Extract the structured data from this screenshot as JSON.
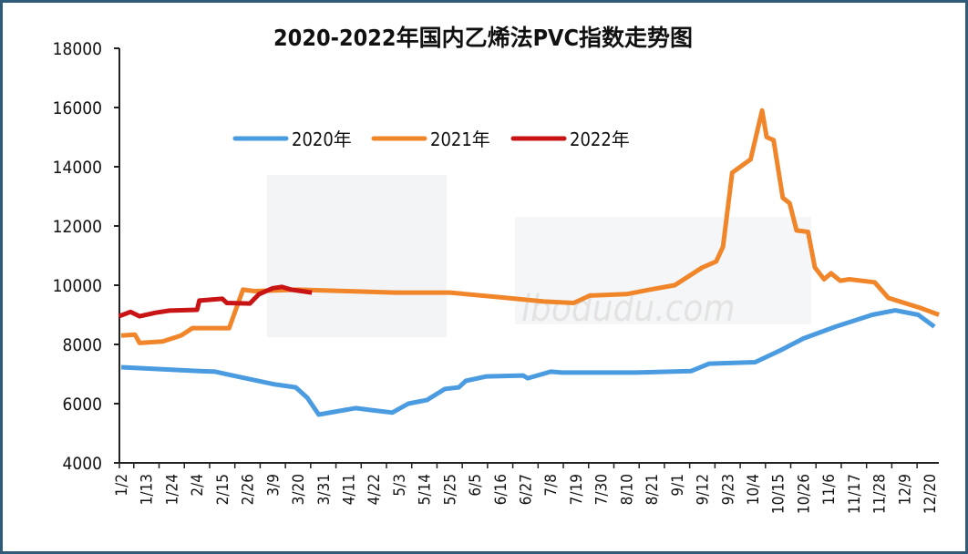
{
  "chart_data": {
    "type": "line",
    "title": "2020-2022年国内乙烯法PVC指数走势图",
    "xlabel": "",
    "ylabel": "",
    "ylim": [
      4000,
      18000
    ],
    "yticks": [
      "4000",
      "6000",
      "8000",
      "10000",
      "12000",
      "14000",
      "16000",
      "18000"
    ],
    "xticks": [
      "1/2",
      "1/13",
      "1/24",
      "2/4",
      "2/15",
      "2/26",
      "3/9",
      "3/20",
      "3/31",
      "4/11",
      "4/22",
      "5/3",
      "5/14",
      "5/25",
      "6/5",
      "6/16",
      "6/27",
      "7/8",
      "7/19",
      "7/30",
      "8/10",
      "8/21",
      "9/1",
      "9/12",
      "9/23",
      "10/4",
      "10/15",
      "10/26",
      "11/6",
      "11/17",
      "11/28",
      "12/9",
      "12/20"
    ],
    "grid": false,
    "legend": "top-left",
    "series": [
      {
        "name": "2020年",
        "color": "#4a9be0",
        "points": [
          [
            "1/2",
            7230
          ],
          [
            "2/5",
            7100
          ],
          [
            "2/12",
            7080
          ],
          [
            "2/25",
            6860
          ],
          [
            "3/10",
            6650
          ],
          [
            "3/19",
            6550
          ],
          [
            "3/24",
            6200
          ],
          [
            "3/29",
            5630
          ],
          [
            "4/14",
            5850
          ],
          [
            "4/21",
            5780
          ],
          [
            "4/30",
            5700
          ],
          [
            "5/7",
            6000
          ],
          [
            "5/15",
            6120
          ],
          [
            "5/23",
            6500
          ],
          [
            "5/29",
            6550
          ],
          [
            "6/1",
            6770
          ],
          [
            "6/10",
            6920
          ],
          [
            "6/26",
            6950
          ],
          [
            "6/28",
            6860
          ],
          [
            "7/8",
            7080
          ],
          [
            "7/13",
            7050
          ],
          [
            "8/14",
            7050
          ],
          [
            "9/7",
            7100
          ],
          [
            "9/15",
            7350
          ],
          [
            "10/5",
            7400
          ],
          [
            "10/16",
            7800
          ],
          [
            "10/26",
            8200
          ],
          [
            "11/9",
            8600
          ],
          [
            "11/25",
            9000
          ],
          [
            "12/5",
            9150
          ],
          [
            "12/15",
            9000
          ],
          [
            "12/22",
            8600
          ]
        ]
      },
      {
        "name": "2021年",
        "color": "#f0852a",
        "points": [
          [
            "1/2",
            8300
          ],
          [
            "1/8",
            8330
          ],
          [
            "1/10",
            8050
          ],
          [
            "1/20",
            8100
          ],
          [
            "1/28",
            8300
          ],
          [
            "2/2",
            8550
          ],
          [
            "2/18",
            8550
          ],
          [
            "2/24",
            9850
          ],
          [
            "3/1",
            9800
          ],
          [
            "3/20",
            9850
          ],
          [
            "4/10",
            9800
          ],
          [
            "5/1",
            9750
          ],
          [
            "5/25",
            9750
          ],
          [
            "6/15",
            9600
          ],
          [
            "7/5",
            9450
          ],
          [
            "7/18",
            9400
          ],
          [
            "7/25",
            9650
          ],
          [
            "8/10",
            9700
          ],
          [
            "8/20",
            9850
          ],
          [
            "8/31",
            10000
          ],
          [
            "9/12",
            10600
          ],
          [
            "9/15",
            10700
          ],
          [
            "9/18",
            10800
          ],
          [
            "9/21",
            11300
          ],
          [
            "9/25",
            13800
          ],
          [
            "10/3",
            14250
          ],
          [
            "10/8",
            15900
          ],
          [
            "10/10",
            15000
          ],
          [
            "10/13",
            14900
          ],
          [
            "10/17",
            12950
          ],
          [
            "10/20",
            12770
          ],
          [
            "10/23",
            11850
          ],
          [
            "10/28",
            11800
          ],
          [
            "10/31",
            10600
          ],
          [
            "11/4",
            10200
          ],
          [
            "11/7",
            10400
          ],
          [
            "11/11",
            10150
          ],
          [
            "11/15",
            10200
          ],
          [
            "11/26",
            10100
          ],
          [
            "12/2",
            9570
          ],
          [
            "12/9",
            9400
          ],
          [
            "12/16",
            9230
          ],
          [
            "12/24",
            9000
          ]
        ]
      },
      {
        "name": "2022年",
        "color": "#c81414",
        "points": [
          [
            "1/1",
            8950
          ],
          [
            "1/6",
            9100
          ],
          [
            "1/10",
            8950
          ],
          [
            "1/17",
            9070
          ],
          [
            "1/23",
            9140
          ],
          [
            "2/4",
            9170
          ],
          [
            "2/5",
            9480
          ],
          [
            "2/15",
            9540
          ],
          [
            "2/17",
            9400
          ],
          [
            "2/27",
            9380
          ],
          [
            "3/3",
            9700
          ],
          [
            "3/9",
            9900
          ],
          [
            "3/13",
            9940
          ],
          [
            "3/17",
            9850
          ],
          [
            "3/26",
            9750
          ]
        ]
      }
    ]
  },
  "watermark": "ibodudu.com"
}
